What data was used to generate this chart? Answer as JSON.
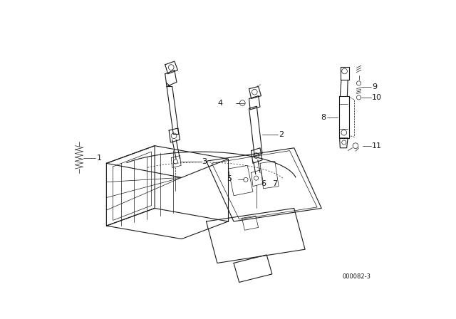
{
  "bg_color": "#ffffff",
  "line_color": "#1a1a1a",
  "diagram_code": "000082-3"
}
